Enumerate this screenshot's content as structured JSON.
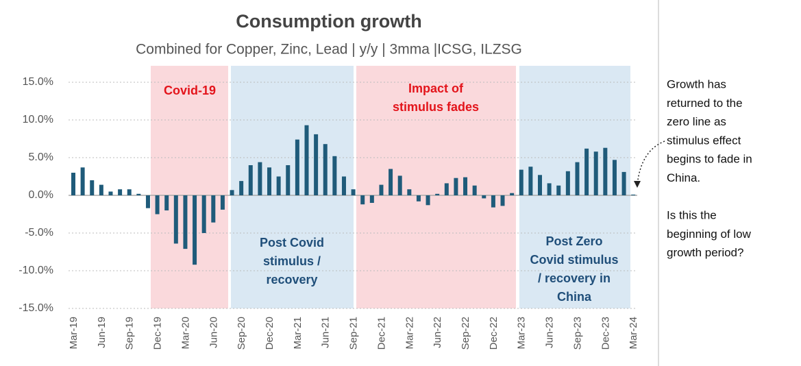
{
  "chart_data": {
    "type": "bar",
    "title": "Consumption growth",
    "subtitle": "Combined for Copper, Zinc, Lead | y/y | 3mma |ICSG, ILZSG",
    "categories": [
      "Mar-19",
      null,
      null,
      "Jun-19",
      null,
      null,
      "Sep-19",
      null,
      null,
      "Dec-19",
      null,
      null,
      "Mar-20",
      null,
      null,
      "Jun-20",
      null,
      null,
      "Sep-20",
      null,
      null,
      "Dec-20",
      null,
      null,
      "Mar-21",
      null,
      null,
      "Jun-21",
      null,
      null,
      "Sep-21",
      null,
      null,
      "Dec-21",
      null,
      null,
      "Mar-22",
      null,
      null,
      "Jun-22",
      null,
      null,
      "Sep-22",
      null,
      null,
      "Dec-22",
      null,
      null,
      "Mar-23",
      null,
      null,
      "Jun-23",
      null,
      null,
      "Sep-23",
      null,
      null,
      "Dec-23",
      null,
      null,
      "Mar-24"
    ],
    "values": [
      3.0,
      3.7,
      2.0,
      1.4,
      0.5,
      0.8,
      0.8,
      0.2,
      -1.7,
      -2.5,
      -2.0,
      -6.4,
      -7.1,
      -9.2,
      -5.0,
      -3.6,
      -1.9,
      0.7,
      1.9,
      4.0,
      4.4,
      3.7,
      2.5,
      4.0,
      7.4,
      9.3,
      8.1,
      6.8,
      5.2,
      2.5,
      0.8,
      -1.2,
      -1.0,
      1.4,
      3.5,
      2.6,
      0.8,
      -0.8,
      -1.3,
      0.2,
      1.6,
      2.3,
      2.4,
      1.3,
      -0.4,
      -1.6,
      -1.4,
      0.3,
      3.4,
      3.8,
      2.7,
      1.6,
      1.3,
      3.2,
      4.4,
      6.2,
      5.8,
      6.3,
      4.7,
      3.1,
      0.1
    ],
    "color": "#1f5b7a",
    "ylim": [
      -15,
      15
    ],
    "yticks": [
      {
        "value": -15,
        "label": "-15.0%"
      },
      {
        "value": -10,
        "label": "-10.0%"
      },
      {
        "value": -5,
        "label": "-5.0%"
      },
      {
        "value": 0,
        "label": "0.0%"
      },
      {
        "value": 5,
        "label": "5.0%"
      },
      {
        "value": 10,
        "label": "10.0%"
      },
      {
        "value": 15,
        "label": "15.0%"
      }
    ],
    "grid": true,
    "regions": [
      {
        "lines": [
          "Covid-19"
        ],
        "color": "#fad9dc",
        "text_color": "#e3141b"
      },
      {
        "lines": [
          "Post Covid",
          "stimulus /",
          "recovery"
        ],
        "color": "#dae8f3",
        "text_color": "#1f4e79"
      },
      {
        "lines": [
          "Impact of",
          "stimulus fades"
        ],
        "color": "#fad9dc",
        "text_color": "#e3141b"
      },
      {
        "lines": [
          "Post Zero",
          "Covid stimulus",
          "/ recovery in",
          "China"
        ],
        "color": "#dae8f3",
        "text_color": "#1f4e79"
      }
    ],
    "annotation": [
      [
        "Growth has",
        "returned to the",
        "zero line as",
        "stimulus effect",
        "begins to fade in",
        "China."
      ],
      [
        "Is this the",
        "beginning of low",
        "growth period?"
      ]
    ]
  }
}
